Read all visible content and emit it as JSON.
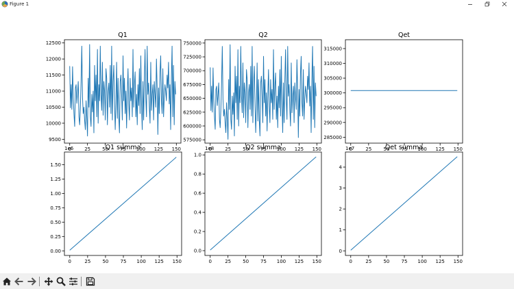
{
  "window": {
    "title": "Figure 1",
    "icon": "matplotlib-icon",
    "controls": [
      "minimize-icon",
      "restore-icon",
      "close-icon"
    ]
  },
  "toolbar": {
    "buttons": [
      "home-icon",
      "back-icon",
      "forward-icon",
      "pan-icon",
      "zoom-icon",
      "configure-subplots-icon",
      "save-icon"
    ]
  },
  "colors": {
    "line": "#1f77b4",
    "axes": "#000000",
    "toolbar_bg": "#f0f0f0"
  },
  "chart_data": [
    {
      "type": "line",
      "title": "Q1",
      "xlabel": "",
      "ylabel": "",
      "xlim": [
        -7.45,
        156.45
      ],
      "ylim": [
        9380,
        12600
      ],
      "xticks": [
        0,
        25,
        50,
        75,
        100,
        125,
        150
      ],
      "yticks": [
        9500,
        10000,
        10500,
        11000,
        11500,
        12000,
        12500
      ],
      "offset_label": "",
      "x": [
        0,
        1,
        2,
        3,
        4,
        5,
        6,
        7,
        8,
        9,
        10,
        11,
        12,
        13,
        14,
        15,
        16,
        17,
        18,
        19,
        20,
        21,
        22,
        23,
        24,
        25,
        26,
        27,
        28,
        29,
        30,
        31,
        32,
        33,
        34,
        35,
        36,
        37,
        38,
        39,
        40,
        41,
        42,
        43,
        44,
        45,
        46,
        47,
        48,
        49,
        50,
        51,
        52,
        53,
        54,
        55,
        56,
        57,
        58,
        59,
        60,
        61,
        62,
        63,
        64,
        65,
        66,
        67,
        68,
        69,
        70,
        71,
        72,
        73,
        74,
        75,
        76,
        77,
        78,
        79,
        80,
        81,
        82,
        83,
        84,
        85,
        86,
        87,
        88,
        89,
        90,
        91,
        92,
        93,
        94,
        95,
        96,
        97,
        98,
        99,
        100,
        101,
        102,
        103,
        104,
        105,
        106,
        107,
        108,
        109,
        110,
        111,
        112,
        113,
        114,
        115,
        116,
        117,
        118,
        119,
        120,
        121,
        122,
        123,
        124,
        125,
        126,
        127,
        128,
        129,
        130,
        131,
        132,
        133,
        134,
        135,
        136,
        137,
        138,
        139,
        140,
        141,
        142,
        143,
        144,
        145,
        146,
        147,
        148,
        149
      ],
      "y": [
        11780,
        10480,
        11200,
        10430,
        11760,
        10800,
        10280,
        9900,
        11100,
        11200,
        10620,
        10950,
        11300,
        10200,
        9950,
        10500,
        11300,
        12400,
        10800,
        10300,
        10500,
        10080,
        9800,
        10700,
        10200,
        9600,
        11400,
        10500,
        12450,
        10200,
        9900,
        10900,
        10350,
        11000,
        9700,
        11800,
        10700,
        11500,
        10200,
        12300,
        10000,
        11200,
        10700,
        12400,
        10900,
        10400,
        11900,
        10250,
        11300,
        11000,
        10100,
        11700,
        11400,
        9950,
        11000,
        11250,
        10500,
        11800,
        10300,
        12400,
        10100,
        11300,
        11800,
        10700,
        9800,
        10600,
        11900,
        10150,
        11400,
        10200,
        9700,
        11300,
        11500,
        10900,
        10100,
        12100,
        10700,
        11400,
        10300,
        11000,
        9850,
        10900,
        11700,
        10600,
        10100,
        11400,
        10700,
        11100,
        10200,
        12300,
        10500,
        11200,
        11600,
        10200,
        10900,
        9950,
        11200,
        10550,
        11700,
        10300,
        12100,
        10600,
        9800,
        11300,
        10100,
        11400,
        12300,
        10800,
        10200,
        12400,
        10900,
        11250,
        10500,
        10000,
        11900,
        10400,
        10900,
        11200,
        10100,
        11300,
        10900,
        10500,
        12000,
        11100,
        9650,
        11100,
        10300,
        11600,
        12100,
        10700,
        10300,
        11700,
        10200,
        10800,
        11200,
        11000,
        10700,
        11500,
        11100,
        11900,
        10600,
        11200,
        9800,
        11400,
        12400,
        10200,
        11800,
        9950,
        11300,
        10900
      ]
    },
    {
      "type": "line",
      "title": "Q2",
      "xlabel": "",
      "ylabel": "",
      "xlim": [
        -7.45,
        156.45
      ],
      "ylim": [
        569000,
        756000
      ],
      "xticks": [
        0,
        25,
        50,
        75,
        100,
        125,
        150
      ],
      "yticks": [
        575000,
        600000,
        625000,
        650000,
        675000,
        700000,
        725000,
        750000
      ],
      "offset_label": "",
      "x": [
        0,
        1,
        2,
        3,
        4,
        5,
        6,
        7,
        8,
        9,
        10,
        11,
        12,
        13,
        14,
        15,
        16,
        17,
        18,
        19,
        20,
        21,
        22,
        23,
        24,
        25,
        26,
        27,
        28,
        29,
        30,
        31,
        32,
        33,
        34,
        35,
        36,
        37,
        38,
        39,
        40,
        41,
        42,
        43,
        44,
        45,
        46,
        47,
        48,
        49,
        50,
        51,
        52,
        53,
        54,
        55,
        56,
        57,
        58,
        59,
        60,
        61,
        62,
        63,
        64,
        65,
        66,
        67,
        68,
        69,
        70,
        71,
        72,
        73,
        74,
        75,
        76,
        77,
        78,
        79,
        80,
        81,
        82,
        83,
        84,
        85,
        86,
        87,
        88,
        89,
        90,
        91,
        92,
        93,
        94,
        95,
        96,
        97,
        98,
        99,
        100,
        101,
        102,
        103,
        104,
        105,
        106,
        107,
        108,
        109,
        110,
        111,
        112,
        113,
        114,
        115,
        116,
        117,
        118,
        119,
        120,
        121,
        122,
        123,
        124,
        125,
        126,
        127,
        128,
        129,
        130,
        131,
        132,
        133,
        134,
        135,
        136,
        137,
        138,
        139,
        140,
        141,
        142,
        143,
        144,
        145,
        146,
        147,
        148,
        149
      ],
      "y": [
        706000,
        628000,
        672000,
        625000,
        705000,
        648000,
        617000,
        594000,
        666000,
        672000,
        637000,
        657000,
        678000,
        612000,
        597000,
        630000,
        678000,
        744000,
        648000,
        618000,
        630000,
        605000,
        588000,
        642000,
        612000,
        576000,
        684000,
        630000,
        747000,
        612000,
        594000,
        654000,
        621000,
        660000,
        582000,
        708000,
        642000,
        690000,
        612000,
        738000,
        600000,
        672000,
        642000,
        744000,
        654000,
        624000,
        714000,
        615000,
        678000,
        660000,
        606000,
        702000,
        684000,
        597000,
        660000,
        675000,
        630000,
        708000,
        618000,
        744000,
        606000,
        678000,
        708000,
        642000,
        588000,
        636000,
        714000,
        609000,
        684000,
        612000,
        582000,
        678000,
        690000,
        654000,
        606000,
        726000,
        642000,
        684000,
        618000,
        660000,
        591000,
        654000,
        702000,
        636000,
        606000,
        684000,
        642000,
        666000,
        612000,
        738000,
        630000,
        672000,
        696000,
        612000,
        654000,
        597000,
        672000,
        633000,
        702000,
        618000,
        726000,
        636000,
        588000,
        678000,
        606000,
        684000,
        738000,
        648000,
        612000,
        744000,
        654000,
        675000,
        630000,
        600000,
        714000,
        624000,
        654000,
        672000,
        606000,
        678000,
        654000,
        630000,
        720000,
        666000,
        579000,
        666000,
        618000,
        696000,
        726000,
        642000,
        618000,
        702000,
        612000,
        648000,
        672000,
        660000,
        642000,
        690000,
        666000,
        714000,
        636000,
        672000,
        588000,
        684000,
        744000,
        612000,
        708000,
        597000,
        678000,
        654000
      ]
    },
    {
      "type": "line",
      "title": "Qet",
      "xlabel": "",
      "ylabel": "",
      "xlim": [
        -7.45,
        156.45
      ],
      "ylim": [
        283000,
        318000
      ],
      "xticks": [
        0,
        25,
        50,
        75,
        100,
        125,
        150
      ],
      "yticks": [
        285000,
        290000,
        295000,
        300000,
        305000,
        310000,
        315000
      ],
      "offset_label": "",
      "x": [
        0,
        149
      ],
      "y": [
        300800,
        300800
      ]
    },
    {
      "type": "line",
      "title": "Q1 summa",
      "xlabel": "",
      "ylabel": "",
      "xlim": [
        -7.45,
        156.45
      ],
      "ylim": [
        -0.08,
        1.72
      ],
      "xticks": [
        0,
        25,
        50,
        75,
        100,
        125,
        150
      ],
      "yticks": [
        0.0,
        0.25,
        0.5,
        0.75,
        1.0,
        1.25,
        1.5
      ],
      "ytick_labels": [
        "0.00",
        "0.25",
        "0.50",
        "0.75",
        "1.00",
        "1.25",
        "1.50"
      ],
      "offset_label": "1e6",
      "x": [
        0,
        149
      ],
      "y": [
        0.011,
        1.63
      ]
    },
    {
      "type": "line",
      "title": "Q2 summa",
      "xlabel": "",
      "ylabel": "",
      "xlim": [
        -7.45,
        156.45
      ],
      "ylim": [
        -0.05,
        1.03
      ],
      "xticks": [
        0,
        25,
        50,
        75,
        100,
        125,
        150
      ],
      "yticks": [
        0.0,
        0.2,
        0.4,
        0.6,
        0.8,
        1.0
      ],
      "ytick_labels": [
        "0.0",
        "0.2",
        "0.4",
        "0.6",
        "0.8",
        "1.0"
      ],
      "offset_label": "1e8",
      "x": [
        0,
        149
      ],
      "y": [
        0.0066,
        0.98
      ]
    },
    {
      "type": "line",
      "title": "Qet summa",
      "xlabel": "",
      "ylabel": "",
      "xlim": [
        -7.45,
        156.45
      ],
      "ylim": [
        -0.22,
        4.72
      ],
      "xticks": [
        0,
        25,
        50,
        75,
        100,
        125,
        150
      ],
      "yticks": [
        0,
        1,
        2,
        3,
        4
      ],
      "ytick_labels": [
        "0",
        "1",
        "2",
        "3",
        "4"
      ],
      "offset_label": "1e7",
      "x": [
        0,
        149
      ],
      "y": [
        0.03,
        4.5
      ]
    }
  ]
}
